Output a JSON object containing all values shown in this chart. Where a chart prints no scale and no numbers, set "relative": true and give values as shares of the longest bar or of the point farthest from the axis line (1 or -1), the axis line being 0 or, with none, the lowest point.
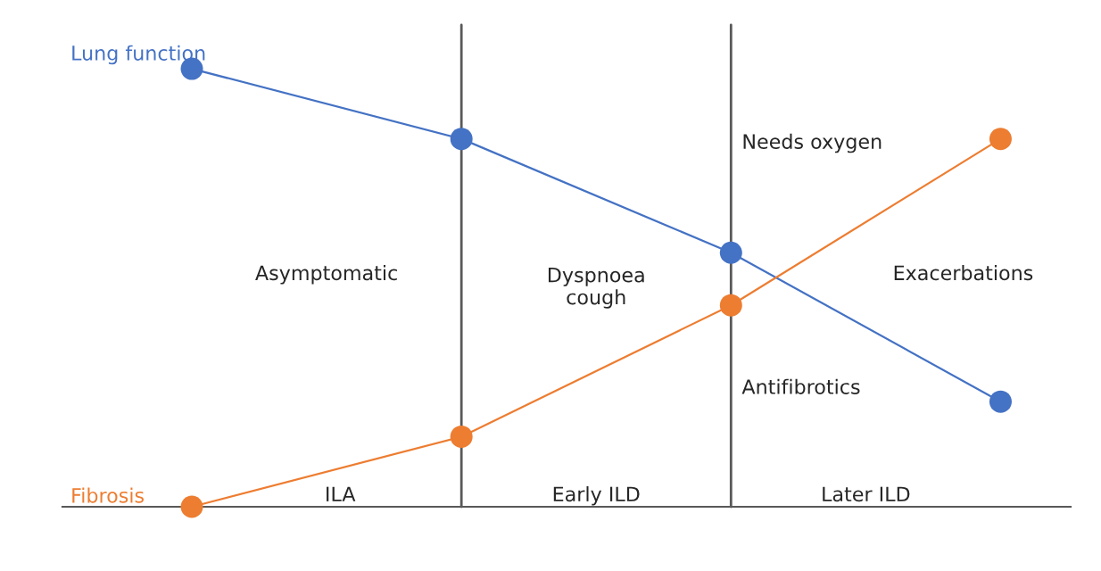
{
  "chart_data": {
    "type": "line",
    "relative": true,
    "categories": [
      null,
      null,
      null,
      null
    ],
    "series": [
      {
        "name": "Lung function",
        "color": "#4472c4",
        "values": [
          1,
          0.84,
          0.58,
          0.24
        ]
      },
      {
        "name": "Fibrosis",
        "color": "#ed7d31",
        "values": [
          0,
          0.16,
          0.46,
          0.84
        ]
      }
    ],
    "marker": "circle",
    "line_style": "solid",
    "annotations": [
      "Asymptomatic",
      "Dyspnoea\ncough",
      "Needs oxygen",
      "Exacerbations",
      "Antifibrotics",
      "ILA",
      "Early ILD",
      "Later ILD"
    ]
  }
}
